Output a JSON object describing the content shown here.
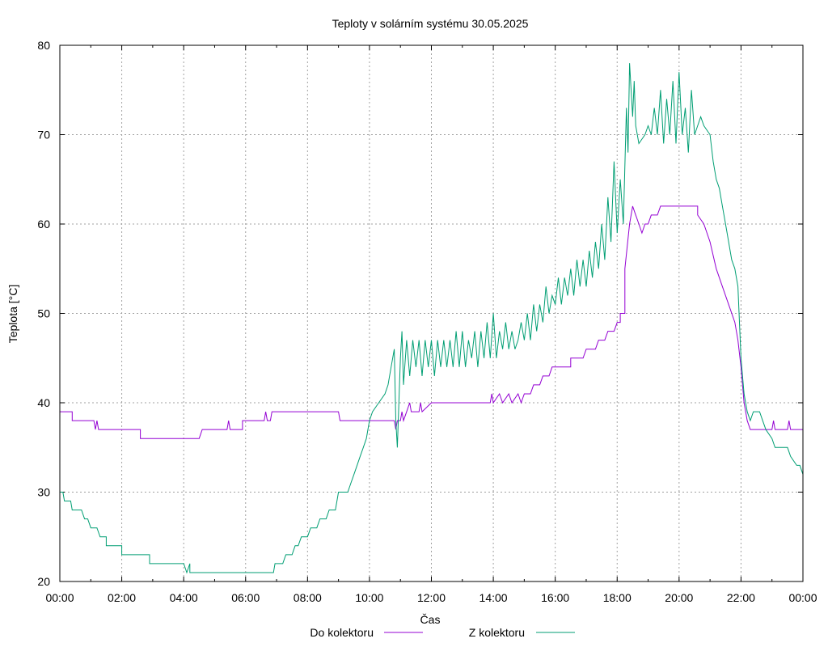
{
  "chart_data": {
    "type": "line",
    "title": "Teploty v solárním systému 30.05.2025",
    "xlabel": "Čas",
    "ylabel": "Teplota [°C]",
    "x_unit": "hours",
    "xlim": [
      0,
      24
    ],
    "ylim": [
      20,
      80
    ],
    "grid": true,
    "legend_position": "bottom",
    "x_ticks": [
      {
        "value": 0,
        "label": "00:00"
      },
      {
        "value": 2,
        "label": "02:00"
      },
      {
        "value": 4,
        "label": "04:00"
      },
      {
        "value": 6,
        "label": "06:00"
      },
      {
        "value": 8,
        "label": "08:00"
      },
      {
        "value": 10,
        "label": "10:00"
      },
      {
        "value": 12,
        "label": "12:00"
      },
      {
        "value": 14,
        "label": "14:00"
      },
      {
        "value": 16,
        "label": "16:00"
      },
      {
        "value": 18,
        "label": "18:00"
      },
      {
        "value": 20,
        "label": "20:00"
      },
      {
        "value": 22,
        "label": "22:00"
      },
      {
        "value": 24,
        "label": "00:00"
      }
    ],
    "y_ticks": [
      {
        "value": 20,
        "label": "20"
      },
      {
        "value": 30,
        "label": "30"
      },
      {
        "value": 40,
        "label": "40"
      },
      {
        "value": 50,
        "label": "50"
      },
      {
        "value": 60,
        "label": "60"
      },
      {
        "value": 70,
        "label": "70"
      },
      {
        "value": 80,
        "label": "80"
      }
    ],
    "series": [
      {
        "name": "Do kolektoru",
        "color": "#9400d3",
        "points": [
          [
            0,
            39
          ],
          [
            0.4,
            39
          ],
          [
            0.4,
            38
          ],
          [
            1.1,
            38
          ],
          [
            1.15,
            37
          ],
          [
            1.2,
            38
          ],
          [
            1.25,
            37
          ],
          [
            2.6,
            37
          ],
          [
            2.6,
            36
          ],
          [
            4.5,
            36
          ],
          [
            4.6,
            37
          ],
          [
            5.4,
            37
          ],
          [
            5.45,
            38
          ],
          [
            5.5,
            37
          ],
          [
            5.9,
            37
          ],
          [
            5.9,
            38
          ],
          [
            6.6,
            38
          ],
          [
            6.65,
            39
          ],
          [
            6.7,
            38
          ],
          [
            6.8,
            38
          ],
          [
            6.85,
            39
          ],
          [
            9.0,
            39
          ],
          [
            9.05,
            38
          ],
          [
            10.8,
            38
          ],
          [
            10.85,
            37
          ],
          [
            10.9,
            38
          ],
          [
            11.0,
            38
          ],
          [
            11.05,
            39
          ],
          [
            11.1,
            38
          ],
          [
            11.2,
            39
          ],
          [
            11.3,
            40
          ],
          [
            11.35,
            39
          ],
          [
            11.6,
            39
          ],
          [
            11.65,
            40
          ],
          [
            11.7,
            39
          ],
          [
            12.0,
            40
          ],
          [
            13.9,
            40
          ],
          [
            13.95,
            41
          ],
          [
            14.0,
            40
          ],
          [
            14.2,
            41
          ],
          [
            14.3,
            40
          ],
          [
            14.5,
            41
          ],
          [
            14.6,
            40
          ],
          [
            14.8,
            41
          ],
          [
            14.9,
            40
          ],
          [
            15.0,
            41
          ],
          [
            15.2,
            41
          ],
          [
            15.3,
            42
          ],
          [
            15.5,
            42
          ],
          [
            15.6,
            43
          ],
          [
            15.8,
            43
          ],
          [
            15.9,
            44
          ],
          [
            16.5,
            44
          ],
          [
            16.5,
            45
          ],
          [
            16.9,
            45
          ],
          [
            17.0,
            46
          ],
          [
            17.3,
            46
          ],
          [
            17.4,
            47
          ],
          [
            17.6,
            47
          ],
          [
            17.7,
            48
          ],
          [
            17.9,
            48
          ],
          [
            18.0,
            49
          ],
          [
            18.1,
            49
          ],
          [
            18.1,
            50
          ],
          [
            18.25,
            50
          ],
          [
            18.25,
            55
          ],
          [
            18.4,
            60
          ],
          [
            18.5,
            62
          ],
          [
            18.6,
            61
          ],
          [
            18.7,
            60
          ],
          [
            18.8,
            59
          ],
          [
            18.9,
            60
          ],
          [
            19.0,
            60
          ],
          [
            19.1,
            61
          ],
          [
            19.3,
            61
          ],
          [
            19.4,
            62
          ],
          [
            20.6,
            62
          ],
          [
            20.6,
            61
          ],
          [
            20.8,
            60
          ],
          [
            21.0,
            58
          ],
          [
            21.2,
            55
          ],
          [
            21.4,
            53
          ],
          [
            21.6,
            51
          ],
          [
            21.8,
            49
          ],
          [
            21.9,
            47
          ],
          [
            22.0,
            44
          ],
          [
            22.1,
            40
          ],
          [
            22.2,
            38
          ],
          [
            22.3,
            37
          ],
          [
            23.0,
            37
          ],
          [
            23.05,
            38
          ],
          [
            23.1,
            37
          ],
          [
            23.5,
            37
          ],
          [
            23.55,
            38
          ],
          [
            23.6,
            37
          ],
          [
            24,
            37
          ]
        ]
      },
      {
        "name": "Z kolektoru",
        "color": "#009e73",
        "points": [
          [
            0,
            30
          ],
          [
            0.1,
            30
          ],
          [
            0.15,
            29
          ],
          [
            0.35,
            29
          ],
          [
            0.4,
            28
          ],
          [
            0.7,
            28
          ],
          [
            0.8,
            27
          ],
          [
            0.9,
            27
          ],
          [
            1.0,
            26
          ],
          [
            1.2,
            26
          ],
          [
            1.3,
            25
          ],
          [
            1.5,
            25
          ],
          [
            1.5,
            24
          ],
          [
            2.0,
            24
          ],
          [
            2.0,
            23
          ],
          [
            2.9,
            23
          ],
          [
            2.9,
            22
          ],
          [
            4.0,
            22
          ],
          [
            4.1,
            21
          ],
          [
            4.2,
            22
          ],
          [
            4.2,
            21
          ],
          [
            6.9,
            21
          ],
          [
            6.95,
            22
          ],
          [
            7.2,
            22
          ],
          [
            7.3,
            23
          ],
          [
            7.5,
            23
          ],
          [
            7.6,
            24
          ],
          [
            7.7,
            24
          ],
          [
            7.8,
            25
          ],
          [
            8.0,
            25
          ],
          [
            8.1,
            26
          ],
          [
            8.3,
            26
          ],
          [
            8.4,
            27
          ],
          [
            8.6,
            27
          ],
          [
            8.7,
            28
          ],
          [
            8.9,
            28
          ],
          [
            9.0,
            30
          ],
          [
            9.3,
            30
          ],
          [
            9.4,
            31
          ],
          [
            9.5,
            32
          ],
          [
            9.6,
            33
          ],
          [
            9.7,
            34
          ],
          [
            9.8,
            35
          ],
          [
            9.9,
            36
          ],
          [
            10.0,
            38
          ],
          [
            10.1,
            39
          ],
          [
            10.3,
            40
          ],
          [
            10.5,
            41
          ],
          [
            10.6,
            42
          ],
          [
            10.7,
            44
          ],
          [
            10.8,
            46
          ],
          [
            10.85,
            38
          ],
          [
            10.9,
            35
          ],
          [
            10.95,
            40
          ],
          [
            11.0,
            45
          ],
          [
            11.05,
            48
          ],
          [
            11.1,
            42
          ],
          [
            11.2,
            47
          ],
          [
            11.3,
            43
          ],
          [
            11.4,
            47
          ],
          [
            11.5,
            44
          ],
          [
            11.6,
            47
          ],
          [
            11.7,
            43
          ],
          [
            11.8,
            47
          ],
          [
            11.9,
            44
          ],
          [
            12.0,
            47
          ],
          [
            12.1,
            43
          ],
          [
            12.2,
            47
          ],
          [
            12.3,
            44
          ],
          [
            12.4,
            47
          ],
          [
            12.5,
            44
          ],
          [
            12.6,
            47
          ],
          [
            12.7,
            44
          ],
          [
            12.8,
            48
          ],
          [
            12.9,
            44
          ],
          [
            13.0,
            48
          ],
          [
            13.1,
            44
          ],
          [
            13.2,
            47
          ],
          [
            13.3,
            45
          ],
          [
            13.4,
            48
          ],
          [
            13.5,
            44
          ],
          [
            13.6,
            48
          ],
          [
            13.7,
            45
          ],
          [
            13.8,
            49
          ],
          [
            13.9,
            45
          ],
          [
            14.0,
            50
          ],
          [
            14.1,
            45
          ],
          [
            14.2,
            48
          ],
          [
            14.3,
            46
          ],
          [
            14.4,
            49
          ],
          [
            14.5,
            46
          ],
          [
            14.6,
            48
          ],
          [
            14.7,
            46
          ],
          [
            14.8,
            47
          ],
          [
            14.9,
            49
          ],
          [
            15.0,
            47
          ],
          [
            15.1,
            50
          ],
          [
            15.2,
            47
          ],
          [
            15.3,
            51
          ],
          [
            15.4,
            48
          ],
          [
            15.5,
            51
          ],
          [
            15.6,
            49
          ],
          [
            15.7,
            53
          ],
          [
            15.8,
            50
          ],
          [
            15.9,
            52
          ],
          [
            16.0,
            51
          ],
          [
            16.1,
            54
          ],
          [
            16.2,
            51
          ],
          [
            16.3,
            54
          ],
          [
            16.4,
            52
          ],
          [
            16.5,
            55
          ],
          [
            16.6,
            52
          ],
          [
            16.7,
            56
          ],
          [
            16.8,
            53
          ],
          [
            16.9,
            56
          ],
          [
            17.0,
            53
          ],
          [
            17.1,
            57
          ],
          [
            17.2,
            54
          ],
          [
            17.3,
            58
          ],
          [
            17.4,
            55
          ],
          [
            17.5,
            60
          ],
          [
            17.6,
            56
          ],
          [
            17.7,
            63
          ],
          [
            17.8,
            58
          ],
          [
            17.9,
            67
          ],
          [
            18.0,
            59
          ],
          [
            18.1,
            65
          ],
          [
            18.2,
            60
          ],
          [
            18.3,
            73
          ],
          [
            18.35,
            68
          ],
          [
            18.4,
            78
          ],
          [
            18.5,
            72
          ],
          [
            18.55,
            76
          ],
          [
            18.6,
            71
          ],
          [
            18.7,
            69
          ],
          [
            18.9,
            70
          ],
          [
            19.0,
            71
          ],
          [
            19.1,
            70
          ],
          [
            19.2,
            73
          ],
          [
            19.3,
            70
          ],
          [
            19.4,
            75
          ],
          [
            19.5,
            69
          ],
          [
            19.6,
            74
          ],
          [
            19.7,
            70
          ],
          [
            19.8,
            76
          ],
          [
            19.9,
            69
          ],
          [
            20.0,
            77
          ],
          [
            20.1,
            70
          ],
          [
            20.2,
            73
          ],
          [
            20.3,
            68
          ],
          [
            20.4,
            75
          ],
          [
            20.5,
            70
          ],
          [
            20.6,
            71
          ],
          [
            20.7,
            72
          ],
          [
            20.8,
            71
          ],
          [
            21.0,
            70
          ],
          [
            21.1,
            67
          ],
          [
            21.2,
            65
          ],
          [
            21.3,
            64
          ],
          [
            21.4,
            62
          ],
          [
            21.5,
            60
          ],
          [
            21.6,
            58
          ],
          [
            21.7,
            56
          ],
          [
            21.8,
            55
          ],
          [
            21.9,
            53
          ],
          [
            22.0,
            45
          ],
          [
            22.1,
            41
          ],
          [
            22.2,
            39
          ],
          [
            22.3,
            38
          ],
          [
            22.4,
            39
          ],
          [
            22.6,
            39
          ],
          [
            22.7,
            38
          ],
          [
            22.8,
            37
          ],
          [
            23.0,
            36
          ],
          [
            23.1,
            35
          ],
          [
            23.5,
            35
          ],
          [
            23.6,
            34
          ],
          [
            23.8,
            33
          ],
          [
            23.9,
            33
          ],
          [
            24,
            32
          ]
        ]
      }
    ]
  }
}
